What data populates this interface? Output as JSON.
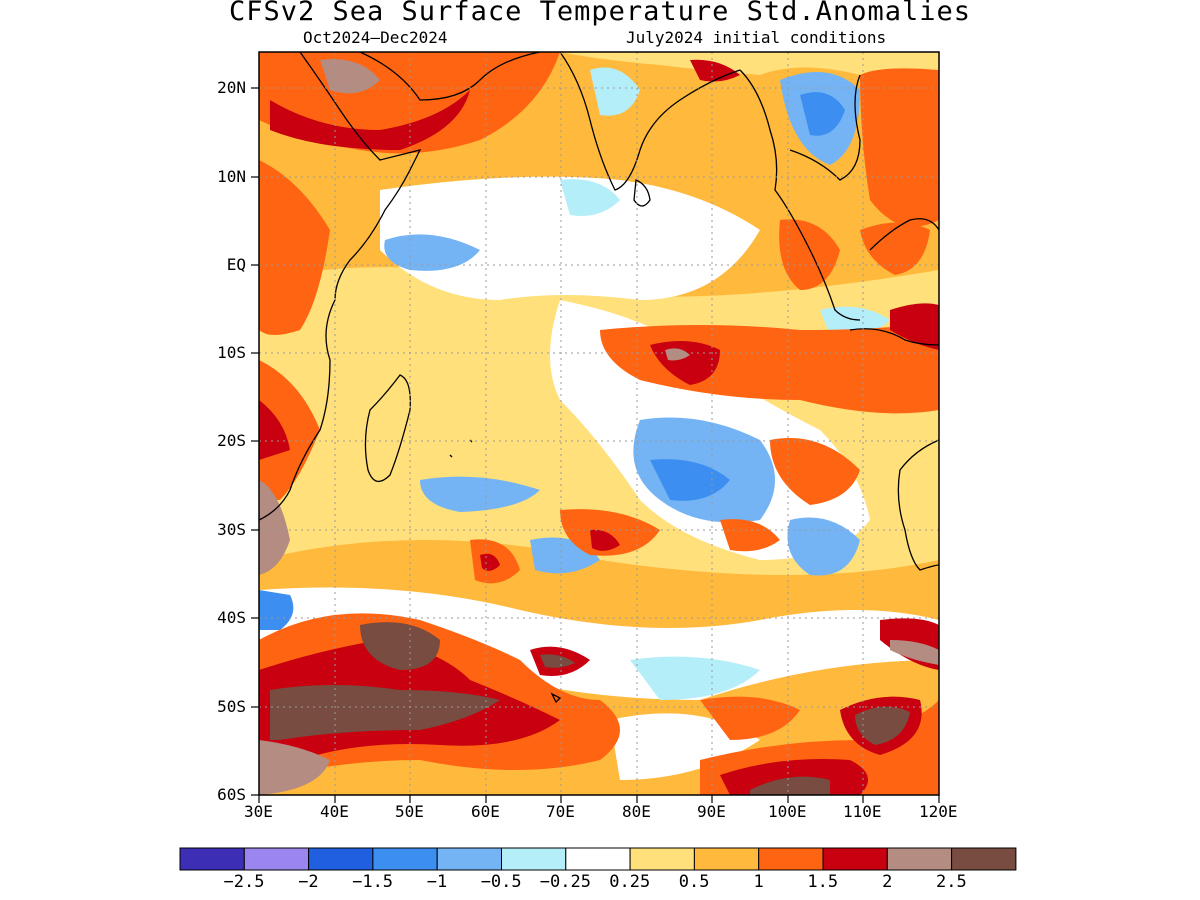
{
  "title": "CFSv2 Sea Surface Temperature Std.Anomalies",
  "subtitle_left": "Oct2024–Dec2024",
  "subtitle_right": "July2024 initial conditions",
  "lat_labels": [
    "20N",
    "10N",
    "EQ",
    "10S",
    "20S",
    "30S",
    "40S",
    "50S",
    "60S"
  ],
  "lon_labels": [
    "30E",
    "40E",
    "50E",
    "60E",
    "70E",
    "80E",
    "90E",
    "100E",
    "110E",
    "120E"
  ],
  "colorbar": {
    "colors": [
      "#3c2fb5",
      "#9b86ef",
      "#1f5fe0",
      "#3c8ff0",
      "#74b4f5",
      "#b4eef8",
      "#ffffff",
      "#ffe07a",
      "#ffb93c",
      "#ff6412",
      "#c8000f",
      "#b48c82",
      "#784c40"
    ],
    "tick_labels": [
      "−2.5",
      "−2",
      "−1.5",
      "−1",
      "−0.5",
      "−0.25",
      "0.25",
      "0.5",
      "1",
      "1.5",
      "2",
      "2.5"
    ]
  },
  "map_extent": {
    "lon": [
      30,
      120
    ],
    "lat": [
      -60,
      24
    ]
  }
}
